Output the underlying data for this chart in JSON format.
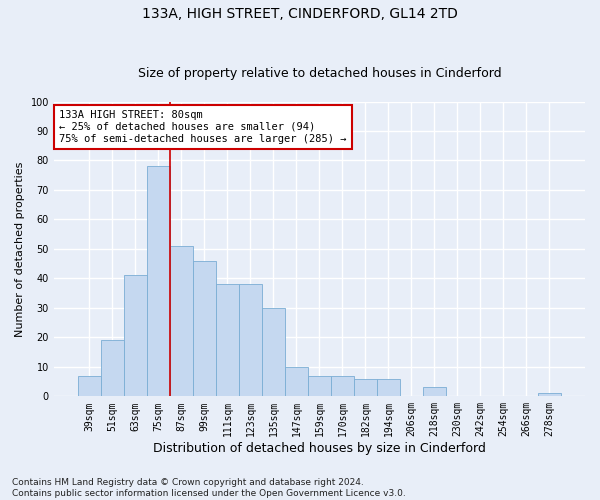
{
  "title": "133A, HIGH STREET, CINDERFORD, GL14 2TD",
  "subtitle": "Size of property relative to detached houses in Cinderford",
  "xlabel": "Distribution of detached houses by size in Cinderford",
  "ylabel": "Number of detached properties",
  "categories": [
    "39sqm",
    "51sqm",
    "63sqm",
    "75sqm",
    "87sqm",
    "99sqm",
    "111sqm",
    "123sqm",
    "135sqm",
    "147sqm",
    "159sqm",
    "170sqm",
    "182sqm",
    "194sqm",
    "206sqm",
    "218sqm",
    "230sqm",
    "242sqm",
    "254sqm",
    "266sqm",
    "278sqm"
  ],
  "values": [
    7,
    19,
    41,
    78,
    51,
    46,
    38,
    38,
    30,
    10,
    7,
    7,
    6,
    6,
    0,
    3,
    0,
    0,
    0,
    0,
    1
  ],
  "bar_color": "#c5d8f0",
  "bar_edge_color": "#7aadd4",
  "vline_x_index": 3,
  "vline_color": "#cc0000",
  "annotation_text": "133A HIGH STREET: 80sqm\n← 25% of detached houses are smaller (94)\n75% of semi-detached houses are larger (285) →",
  "annotation_box_color": "white",
  "annotation_box_edge": "#cc0000",
  "ylim": [
    0,
    100
  ],
  "yticks": [
    0,
    10,
    20,
    30,
    40,
    50,
    60,
    70,
    80,
    90,
    100
  ],
  "footnote": "Contains HM Land Registry data © Crown copyright and database right 2024.\nContains public sector information licensed under the Open Government Licence v3.0.",
  "bg_color": "#e8eef8",
  "plot_bg_color": "#e8eef8",
  "grid_color": "white",
  "title_fontsize": 10,
  "subtitle_fontsize": 9,
  "xlabel_fontsize": 9,
  "ylabel_fontsize": 8,
  "tick_fontsize": 7,
  "footnote_fontsize": 6.5,
  "annotation_fontsize": 7.5
}
